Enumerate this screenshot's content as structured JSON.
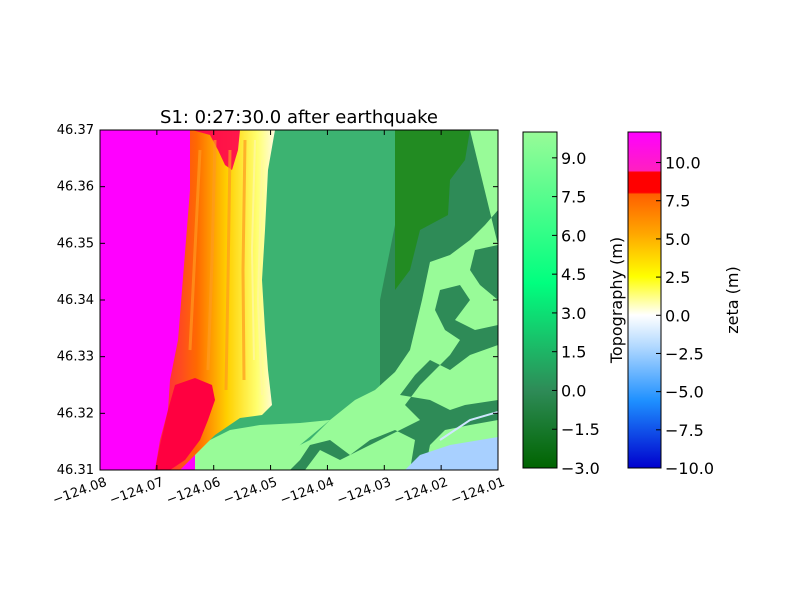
{
  "chart_data": {
    "type": "heatmap",
    "title": "S1: 0:27:30.0 after earthquake",
    "xlabel": "",
    "ylabel": "",
    "xlim": [
      -124.08,
      -124.01
    ],
    "ylim": [
      46.31,
      46.37
    ],
    "x_ticks": [
      "−124.08",
      "−124.07",
      "−124.06",
      "−124.05",
      "−124.04",
      "−124.03",
      "−124.02",
      "−124.01"
    ],
    "y_ticks": [
      "46.37",
      "46.36",
      "46.35",
      "46.34",
      "46.33",
      "46.32",
      "46.31"
    ],
    "grid": false,
    "colorbars": [
      {
        "label": "Topography (m)",
        "range": [
          -3.0,
          10.0
        ],
        "ticks": [
          "9.0",
          "7.5",
          "6.0",
          "4.5",
          "3.0",
          "1.5",
          "0.0",
          "−1.5",
          "−3.0"
        ],
        "colors": [
          "#006400",
          "#3cb371",
          "#00ff7f",
          "#98fb98"
        ]
      },
      {
        "label": "zeta (m)",
        "range": [
          -10.0,
          12.0
        ],
        "ticks": [
          "10.0",
          "7.5",
          "5.0",
          "2.5",
          "0.0",
          "−2.5",
          "−5.0",
          "−7.5",
          "−10.0"
        ],
        "colors": [
          "#0000cd",
          "#00bfff",
          "#ffffff",
          "#ffff00",
          "#ff8c00",
          "#ff0000",
          "#ff00ff"
        ]
      }
    ]
  }
}
